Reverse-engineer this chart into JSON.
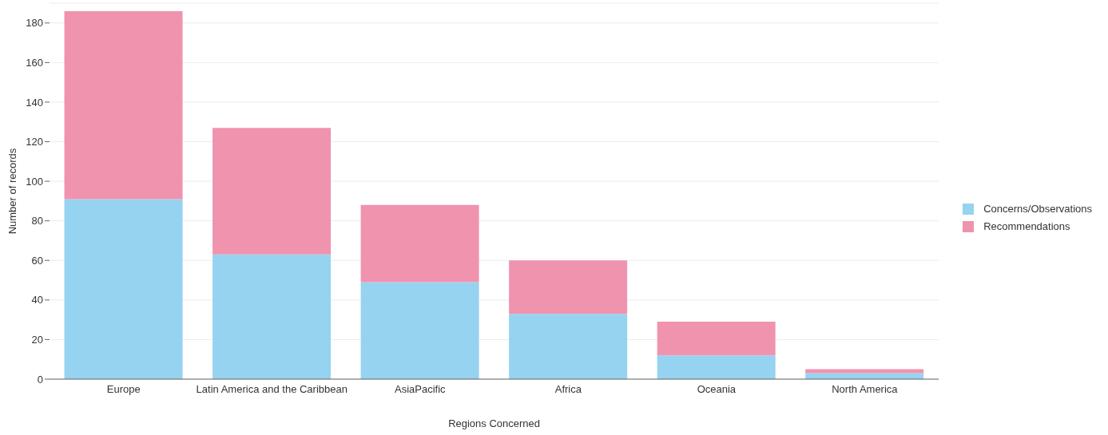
{
  "chart_data": {
    "type": "bar",
    "stacked": true,
    "xlabel": "Regions Concerned",
    "ylabel": "Number of records",
    "categories": [
      "Europe",
      "Latin America and the Caribbean",
      "AsiaPacific",
      "Africa",
      "Oceania",
      "North America"
    ],
    "series": [
      {
        "name": "Concerns/Observations",
        "color": "#96d3f0",
        "values": [
          91,
          63,
          49,
          33,
          12,
          3
        ]
      },
      {
        "name": "Recommendations",
        "color": "#f093ae",
        "values": [
          95,
          64,
          39,
          27,
          17,
          2
        ]
      }
    ],
    "ylim": [
      0,
      190
    ],
    "yticks": [
      0,
      20,
      40,
      60,
      80,
      100,
      120,
      140,
      160,
      180
    ],
    "grid": "y",
    "legend": "right"
  }
}
